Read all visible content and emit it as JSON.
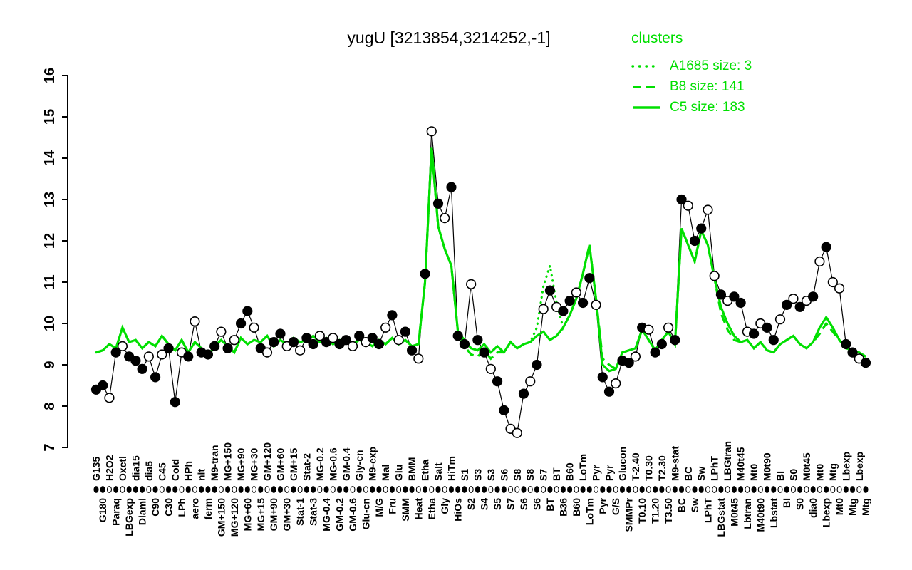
{
  "title": "yugU [3213854,3214252,-1]",
  "legend": {
    "heading": "clusters",
    "entries": [
      {
        "label": "A1685 size: 3",
        "style": "dotted"
      },
      {
        "label": "B8 size: 141",
        "style": "dashed"
      },
      {
        "label": "C5 size: 183",
        "style": "solid"
      }
    ]
  },
  "colors": {
    "cluster_green": "#00DF00",
    "point_black": "#000000",
    "background": "#FFFFFF"
  },
  "chart_data": {
    "type": "line",
    "title": "yugU [3213854,3214252,-1]",
    "xlabel": "",
    "ylabel": "",
    "ylim": [
      7,
      16
    ],
    "yticks": [
      "7",
      "8",
      "9",
      "10",
      "11",
      "12",
      "13",
      "14",
      "15",
      "16"
    ],
    "grid": false,
    "legend_position": "top-right",
    "categories": [
      "G135",
      "G180",
      "H2O2",
      "Paraq",
      "Oxctl",
      "LBGexp",
      "dia15",
      "Diami",
      "dia5",
      "C90",
      "C45",
      "C30",
      "Cold",
      "LPh",
      "HPh",
      "aero",
      "nit",
      "ferm",
      "M9-tran",
      "GM+150",
      "MG+150",
      "MG+120",
      "MG+90",
      "MG+60",
      "MG+30",
      "MG+15",
      "GM+120",
      "GM+90",
      "GM+60",
      "GM+30",
      "GM+15",
      "Stat-1",
      "Stat-2",
      "Stat-3",
      "MG-0.2",
      "MG-0.4",
      "MG-0.6",
      "GM-0.2",
      "GM-0.4",
      "GM-0.6",
      "Gly-cn",
      "Glu-cn",
      "M9-exp",
      "M/G",
      "Mal",
      "Fru",
      "Glu",
      "SMM",
      "BMM",
      "Heat",
      "Etha",
      "Etha",
      "Salt",
      "Gly",
      "HiTm",
      "HiOs",
      "S1",
      "S2",
      "S3",
      "S4",
      "S3",
      "S5",
      "S6",
      "S7",
      "S8",
      "S6",
      "S8",
      "S6",
      "S7",
      "BT",
      "BT",
      "B36",
      "B60",
      "B60",
      "LoTm",
      "LoTm",
      "Pyr",
      "Pyr",
      "Pyr",
      "G/S",
      "Glucon",
      "SMMPr",
      "T-2.40",
      "T0.10",
      "T0.30",
      "T1.20",
      "T2.30",
      "T3.50",
      "M9-stat",
      "BC",
      "BC",
      "Sw",
      "Sw",
      "LPhT",
      "LPhT",
      "LBGstat",
      "LBGtran",
      "M0t45",
      "M40t45",
      "Lbtran",
      "Mt0",
      "M40t90",
      "M0t90",
      "Lbstat",
      "BI",
      "BI",
      "S0",
      "S0",
      "M0t45",
      "dia0",
      "Mt0",
      "Lbexp",
      "Mtg",
      "Mt0",
      "Lbexp",
      "Mtg",
      "Lbexp",
      "Mtg"
    ],
    "series": [
      {
        "name": "gene",
        "color": "#000000",
        "style": "points+line",
        "values": [
          8.4,
          8.5,
          8.2,
          9.3,
          9.45,
          9.2,
          9.1,
          8.9,
          9.2,
          8.7,
          9.25,
          9.4,
          8.1,
          9.3,
          9.2,
          10.05,
          9.3,
          9.25,
          9.45,
          9.8,
          9.4,
          9.6,
          10.0,
          10.3,
          9.9,
          9.4,
          9.3,
          9.55,
          9.75,
          9.45,
          9.55,
          9.35,
          9.65,
          9.5,
          9.7,
          9.55,
          9.65,
          9.5,
          9.6,
          9.45,
          9.7,
          9.55,
          9.65,
          9.5,
          9.9,
          10.2,
          9.6,
          9.8,
          9.35,
          9.15,
          11.2,
          14.65,
          12.9,
          12.55,
          13.3,
          9.7,
          9.5,
          10.95,
          9.6,
          9.3,
          8.9,
          8.6,
          7.9,
          7.45,
          7.35,
          8.3,
          8.6,
          9.0,
          10.35,
          10.8,
          10.4,
          10.3,
          10.55,
          10.75,
          10.5,
          11.1,
          10.45,
          8.7,
          8.35,
          8.55,
          9.1,
          9.05,
          9.2,
          9.9,
          9.85,
          9.3,
          9.5,
          9.9,
          9.6,
          13.0,
          12.85,
          12.0,
          12.3,
          12.75,
          11.15,
          10.7,
          10.55,
          10.65,
          10.5,
          9.8,
          9.75,
          10.0,
          9.9,
          9.6,
          10.1,
          10.45,
          10.6,
          10.4,
          10.55,
          10.65,
          11.5,
          11.85,
          11.0,
          10.85,
          9.5,
          9.3,
          9.15,
          9.05
        ]
      },
      {
        "name": "A1685",
        "size": 3,
        "color": "#00DF00",
        "style": "dotted",
        "values": [
          9.3,
          9.35,
          9.5,
          9.4,
          9.9,
          9.55,
          9.6,
          9.4,
          9.55,
          9.45,
          9.7,
          9.5,
          9.35,
          9.6,
          9.3,
          9.55,
          9.4,
          9.2,
          9.45,
          9.6,
          9.45,
          9.3,
          9.65,
          9.5,
          9.6,
          9.55,
          9.7,
          9.45,
          9.6,
          9.5,
          9.65,
          9.55,
          9.6,
          9.7,
          9.55,
          9.65,
          9.5,
          9.6,
          9.55,
          9.5,
          9.6,
          9.55,
          9.45,
          9.6,
          9.5,
          9.65,
          9.5,
          9.6,
          9.45,
          9.5,
          11.0,
          14.25,
          12.35,
          11.8,
          11.4,
          9.8,
          9.6,
          9.4,
          9.35,
          9.5,
          9.3,
          9.45,
          9.3,
          9.55,
          9.4,
          9.5,
          9.55,
          9.9,
          10.9,
          11.4,
          10.5,
          9.9,
          10.2,
          10.6,
          11.2,
          11.9,
          10.6,
          9.0,
          8.85,
          8.9,
          9.3,
          9.35,
          9.4,
          9.85,
          9.6,
          9.35,
          9.6,
          9.8,
          9.5,
          12.3,
          11.9,
          11.5,
          12.25,
          11.9,
          11.1,
          10.4,
          10.0,
          9.7,
          9.55,
          9.6,
          9.4,
          9.55,
          9.35,
          9.3,
          9.5,
          9.6,
          9.7,
          9.5,
          9.4,
          9.55,
          9.9,
          10.15,
          9.9,
          9.6,
          9.4,
          9.35,
          9.3,
          9.2
        ]
      },
      {
        "name": "B8",
        "size": 141,
        "color": "#00DF00",
        "style": "dashed",
        "values": [
          9.3,
          9.35,
          9.5,
          9.4,
          9.9,
          9.55,
          9.6,
          9.4,
          9.55,
          9.45,
          9.7,
          9.5,
          9.35,
          9.6,
          9.3,
          9.55,
          9.4,
          9.2,
          9.45,
          9.6,
          9.45,
          9.3,
          9.65,
          9.5,
          9.6,
          9.55,
          9.7,
          9.45,
          9.6,
          9.5,
          9.65,
          9.55,
          9.6,
          9.7,
          9.55,
          9.65,
          9.5,
          9.6,
          9.55,
          9.5,
          9.6,
          9.55,
          9.45,
          9.6,
          9.5,
          9.65,
          9.5,
          9.6,
          9.45,
          9.5,
          11.0,
          14.25,
          12.35,
          11.8,
          11.4,
          9.8,
          9.45,
          9.25,
          9.2,
          9.35,
          9.15,
          9.3,
          9.3,
          9.55,
          9.4,
          9.5,
          9.55,
          9.7,
          9.8,
          9.6,
          9.7,
          9.9,
          10.2,
          10.6,
          11.2,
          11.9,
          10.6,
          9.15,
          9.0,
          8.9,
          9.3,
          9.35,
          9.4,
          9.85,
          9.6,
          9.35,
          9.6,
          9.8,
          9.5,
          12.3,
          11.9,
          11.5,
          12.25,
          11.9,
          11.1,
          10.25,
          9.85,
          9.6,
          9.55,
          9.6,
          9.4,
          9.55,
          9.35,
          9.3,
          9.5,
          9.6,
          9.7,
          9.5,
          9.4,
          9.55,
          9.75,
          10.0,
          9.8,
          9.6,
          9.4,
          9.35,
          9.3,
          9.2
        ]
      },
      {
        "name": "C5",
        "size": 183,
        "color": "#00DF00",
        "style": "solid",
        "values": [
          9.3,
          9.35,
          9.5,
          9.4,
          9.9,
          9.55,
          9.6,
          9.4,
          9.55,
          9.45,
          9.7,
          9.5,
          9.35,
          9.6,
          9.3,
          9.55,
          9.4,
          9.2,
          9.45,
          9.6,
          9.45,
          9.3,
          9.65,
          9.5,
          9.6,
          9.55,
          9.7,
          9.45,
          9.6,
          9.5,
          9.65,
          9.55,
          9.6,
          9.7,
          9.55,
          9.65,
          9.5,
          9.6,
          9.55,
          9.5,
          9.6,
          9.55,
          9.45,
          9.6,
          9.5,
          9.65,
          9.5,
          9.6,
          9.45,
          9.5,
          11.0,
          14.25,
          12.35,
          11.8,
          11.4,
          9.8,
          9.6,
          9.4,
          9.35,
          9.5,
          9.3,
          9.45,
          9.3,
          9.55,
          9.4,
          9.5,
          9.55,
          9.7,
          9.8,
          9.6,
          9.7,
          9.9,
          10.2,
          10.6,
          11.2,
          11.9,
          10.6,
          9.0,
          8.85,
          8.9,
          9.3,
          9.35,
          9.4,
          9.85,
          9.6,
          9.35,
          9.6,
          9.8,
          9.5,
          12.3,
          11.9,
          11.5,
          12.25,
          11.9,
          11.1,
          10.4,
          10.0,
          9.7,
          9.55,
          9.6,
          9.4,
          9.55,
          9.35,
          9.3,
          9.5,
          9.6,
          9.7,
          9.5,
          9.4,
          9.55,
          9.9,
          10.15,
          9.9,
          9.6,
          9.4,
          9.35,
          9.3,
          9.2
        ]
      }
    ],
    "point_filled": [
      1,
      1,
      0,
      1,
      0,
      1,
      1,
      1,
      0,
      1,
      0,
      1,
      1,
      0,
      1,
      0,
      1,
      1,
      1,
      0,
      1,
      0,
      1,
      1,
      0,
      1,
      0,
      1,
      1,
      0,
      1,
      0,
      1,
      1,
      0,
      1,
      0,
      1,
      1,
      0,
      1,
      0,
      1,
      1,
      0,
      1,
      0,
      1,
      1,
      0,
      1,
      0,
      1,
      0,
      1,
      1,
      1,
      0,
      1,
      1,
      0,
      1,
      1,
      0,
      0,
      1,
      0,
      1,
      0,
      1,
      0,
      1,
      1,
      0,
      1,
      1,
      0,
      1,
      1,
      0,
      1,
      1,
      0,
      1,
      0,
      1,
      1,
      0,
      1,
      1,
      0,
      1,
      1,
      0,
      0,
      1,
      0,
      1,
      1,
      0,
      1,
      0,
      1,
      1,
      0,
      1,
      0,
      1,
      0,
      1,
      0,
      1,
      0,
      0,
      1,
      1,
      0,
      1
    ]
  }
}
